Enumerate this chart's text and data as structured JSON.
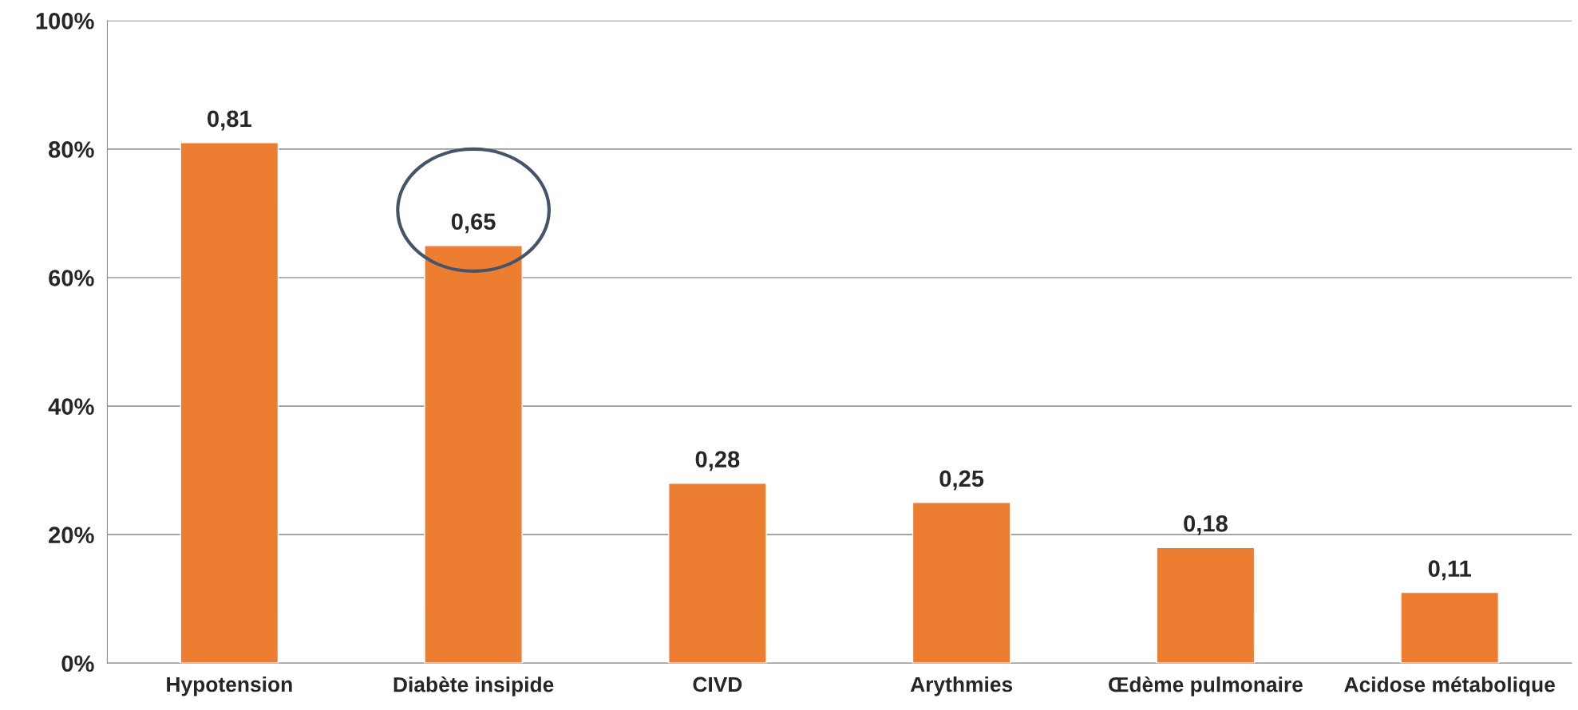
{
  "chart_data": {
    "type": "bar",
    "categories": [
      "Hypotension",
      "Diabète insipide",
      "CIVD",
      "Arythmies",
      "Œdème pulmonaire",
      "Acidose métabolique"
    ],
    "values": [
      0.81,
      0.65,
      0.28,
      0.25,
      0.18,
      0.11
    ],
    "color": "#ed7d31",
    "value_labels": [
      "0,81",
      "0,65",
      "0,28",
      "0,25",
      "0,18",
      "0,11"
    ],
    "ylim": [
      0,
      1
    ],
    "yticks": [
      {
        "value": 0,
        "label": "0%"
      },
      {
        "value": 0.2,
        "label": "20%"
      },
      {
        "value": 0.4,
        "label": "40%"
      },
      {
        "value": 0.6,
        "label": "60%"
      },
      {
        "value": 0.8,
        "label": "80%"
      },
      {
        "value": 1,
        "label": "100%"
      }
    ],
    "grid": "y",
    "legend": false
  }
}
